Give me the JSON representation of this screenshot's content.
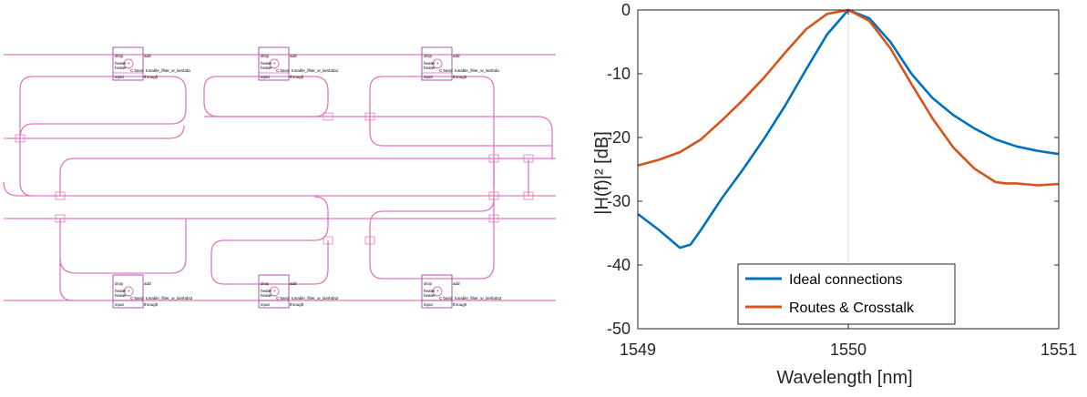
{
  "layout": {
    "waveguide_color": "#e377c2",
    "filters": [
      {
        "drop": "drop",
        "add": "add",
        "heater": "heater +",
        "heater_minus": "heater -",
        "band": "C band",
        "cell": "tunable_filter_w_lambda",
        "input": "input",
        "through": "through"
      },
      {
        "drop": "drop",
        "add": "add",
        "heater": "heater +",
        "heater_minus": "heater -",
        "band": "C band",
        "cell": "tunable_filter_w_lambda1",
        "input": "input",
        "through": "through"
      },
      {
        "drop": "drop",
        "add": "add",
        "heater": "heater +",
        "heater_minus": "heater -",
        "band": "C band",
        "cell": "tunable_filter_w_lambda",
        "input": "input",
        "through": "through"
      },
      {
        "drop": "drop",
        "add": "add",
        "heater": "heater +",
        "heater_minus": "heater -",
        "band": "C band",
        "cell": "tunable_filter_w_lambda3",
        "input": "input",
        "through": "through"
      },
      {
        "drop": "drop",
        "add": "add",
        "heater": "heater +",
        "heater_minus": "heater -",
        "band": "C band",
        "cell": "tunable_filter_w_lambda2",
        "input": "input",
        "through": "through"
      },
      {
        "drop": "drop",
        "add": "add",
        "heater": "heater +",
        "heater_minus": "heater -",
        "band": "C band",
        "cell": "tunable_filter_w_lambda3",
        "input": "input",
        "through": "through"
      }
    ]
  },
  "chart_data": {
    "type": "line",
    "xlabel": "Wavelength [nm]",
    "ylabel": "|H(f)|² [dB]",
    "xlim": [
      1549,
      1551
    ],
    "ylim": [
      -50,
      0
    ],
    "xticks": [
      "1549",
      "1550",
      "1551"
    ],
    "yticks": [
      "0",
      "-10",
      "-20",
      "-30",
      "-40",
      "-50"
    ],
    "grid": "center-crosshair",
    "legend_position": "bottom-center",
    "series": [
      {
        "name": "Ideal connections",
        "color": "#0072bd",
        "x": [
          1549.0,
          1549.1,
          1549.2,
          1549.25,
          1549.3,
          1549.4,
          1549.5,
          1549.6,
          1549.7,
          1549.8,
          1549.9,
          1550.0,
          1550.1,
          1550.2,
          1550.3,
          1550.4,
          1550.5,
          1550.6,
          1550.7,
          1550.8,
          1550.9,
          1551.0
        ],
        "y": [
          -32.0,
          -34.5,
          -37.3,
          -36.8,
          -34.5,
          -29.5,
          -25.0,
          -20.2,
          -15.0,
          -9.3,
          -3.8,
          0.0,
          -1.3,
          -5.0,
          -10.0,
          -13.8,
          -16.5,
          -18.6,
          -20.3,
          -21.4,
          -22.1,
          -22.6
        ]
      },
      {
        "name": "Routes & Crosstalk",
        "color": "#d95319",
        "x": [
          1549.0,
          1549.1,
          1549.2,
          1549.3,
          1549.4,
          1549.5,
          1549.6,
          1549.7,
          1549.8,
          1549.9,
          1550.0,
          1550.1,
          1550.2,
          1550.3,
          1550.4,
          1550.5,
          1550.6,
          1550.7,
          1550.75,
          1550.8,
          1550.9,
          1551.0
        ],
        "y": [
          -24.4,
          -23.5,
          -22.3,
          -20.3,
          -17.3,
          -14.1,
          -10.6,
          -6.7,
          -3.0,
          -0.6,
          0.0,
          -1.7,
          -6.0,
          -11.6,
          -17.0,
          -21.6,
          -24.9,
          -27.0,
          -27.2,
          -27.2,
          -27.5,
          -27.3
        ]
      }
    ]
  }
}
